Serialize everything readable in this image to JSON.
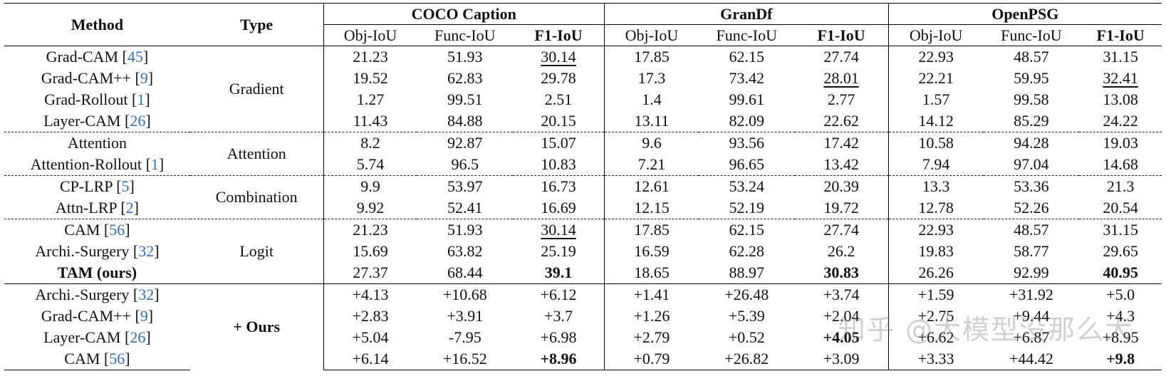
{
  "header": {
    "method": "Method",
    "type": "Type",
    "datasets": [
      "COCO Caption",
      "GranDf",
      "OpenPSG"
    ],
    "metrics": [
      "Obj-IoU",
      "Func-IoU",
      "F1-IoU"
    ]
  },
  "types": {
    "gradient": "Gradient",
    "attention": "Attention",
    "combination": "Combination",
    "logit": "Logit",
    "ours": "+ Ours"
  },
  "rows": [
    {
      "name": "Grad-CAM",
      "ref": "45",
      "v": [
        "21.23",
        "51.93",
        "30.14",
        "17.85",
        "62.15",
        "27.74",
        "22.93",
        "48.57",
        "31.15"
      ]
    },
    {
      "name": "Grad-CAM++",
      "ref": "9",
      "v": [
        "19.52",
        "62.83",
        "29.78",
        "17.3",
        "73.42",
        "28.01",
        "22.21",
        "59.95",
        "32.41"
      ]
    },
    {
      "name": "Grad-Rollout",
      "ref": "1",
      "v": [
        "1.27",
        "99.51",
        "2.51",
        "1.4",
        "99.61",
        "2.77",
        "1.57",
        "99.58",
        "13.08"
      ]
    },
    {
      "name": "Layer-CAM",
      "ref": "26",
      "v": [
        "11.43",
        "84.88",
        "20.15",
        "13.11",
        "82.09",
        "22.62",
        "14.12",
        "85.29",
        "24.22"
      ]
    },
    {
      "name": "Attention",
      "ref": "",
      "v": [
        "8.2",
        "92.87",
        "15.07",
        "9.6",
        "93.56",
        "17.42",
        "10.58",
        "94.28",
        "19.03"
      ]
    },
    {
      "name": "Attention-Rollout",
      "ref": "1",
      "v": [
        "5.74",
        "96.5",
        "10.83",
        "7.21",
        "96.65",
        "13.42",
        "7.94",
        "97.04",
        "14.68"
      ]
    },
    {
      "name": "CP-LRP",
      "ref": "5",
      "v": [
        "9.9",
        "53.97",
        "16.73",
        "12.61",
        "53.24",
        "20.39",
        "13.3",
        "53.36",
        "21.3"
      ]
    },
    {
      "name": "Attn-LRP",
      "ref": "2",
      "v": [
        "9.92",
        "52.41",
        "16.69",
        "12.15",
        "52.19",
        "19.72",
        "12.78",
        "52.26",
        "20.54"
      ]
    },
    {
      "name": "CAM",
      "ref": "56",
      "v": [
        "21.23",
        "51.93",
        "30.14",
        "17.85",
        "62.15",
        "27.74",
        "22.93",
        "48.57",
        "31.15"
      ]
    },
    {
      "name": "Archi.-Surgery",
      "ref": "32",
      "v": [
        "15.69",
        "63.82",
        "25.19",
        "16.59",
        "62.28",
        "26.2",
        "19.83",
        "58.77",
        "29.65"
      ]
    },
    {
      "name": "TAM (ours)",
      "ref": "",
      "v": [
        "27.37",
        "68.44",
        "39.1",
        "18.65",
        "88.97",
        "30.83",
        "26.26",
        "92.99",
        "40.95"
      ]
    },
    {
      "name": "Archi.-Surgery",
      "ref": "32",
      "v": [
        "+4.13",
        "+10.68",
        "+6.12",
        "+1.41",
        "+26.48",
        "+3.74",
        "+1.59",
        "+31.92",
        "+5.0"
      ]
    },
    {
      "name": "Grad-CAM++",
      "ref": "9",
      "v": [
        "+2.83",
        "+3.91",
        "+3.7",
        "+1.26",
        "+5.39",
        "+2.04",
        "+2.75",
        "+9.44",
        "+4.3"
      ]
    },
    {
      "name": "Layer-CAM",
      "ref": "26",
      "v": [
        "+5.04",
        "-7.95",
        "+6.98",
        "+2.79",
        "+0.52",
        "+4.05",
        "+6.62",
        "+6.87",
        "+8.95"
      ]
    },
    {
      "name": "CAM",
      "ref": "56",
      "v": [
        "+6.14",
        "+16.52",
        "+8.96",
        "+0.79",
        "+26.82",
        "+3.09",
        "+3.33",
        "+44.42",
        "+9.8"
      ]
    }
  ],
  "watermark": "知乎 @大模型没那么大"
}
